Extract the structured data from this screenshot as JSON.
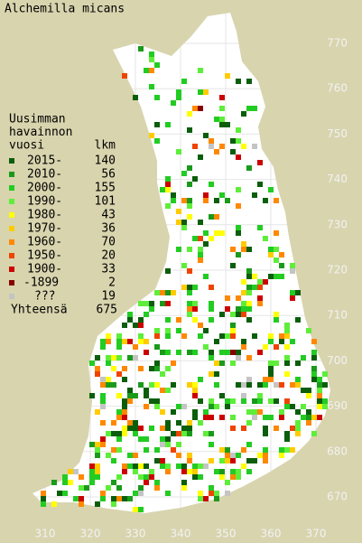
{
  "title": "Alchemilla micans",
  "legend": {
    "heading": [
      "Uusimman",
      "havainnon",
      "vuosi"
    ],
    "count_heading": "lkm",
    "rows": [
      {
        "label": "2015-",
        "count": 140,
        "color": "#0b5e0b"
      },
      {
        "label": "2010-",
        "count": 56,
        "color": "#1a9a1a"
      },
      {
        "label": "2000-",
        "count": 155,
        "color": "#22cc22"
      },
      {
        "label": "1990-",
        "count": 101,
        "color": "#5eee3a"
      },
      {
        "label": "1980-",
        "count": 43,
        "color": "#ffff00"
      },
      {
        "label": "1970-",
        "count": 36,
        "color": "#ffcc00"
      },
      {
        "label": "1960-",
        "count": 70,
        "color": "#ff8800"
      },
      {
        "label": "1950-",
        "count": 20,
        "color": "#ee4400"
      },
      {
        "label": "1900-",
        "count": 33,
        "color": "#cc0000"
      },
      {
        "label": "-1899",
        "count": 2,
        "color": "#880000"
      },
      {
        "label": "???",
        "count": 19,
        "color": "#c4c4c4"
      }
    ],
    "total": {
      "label": "Yhteensä",
      "count": 675
    }
  },
  "map": {
    "xticks": [
      310,
      320,
      330,
      340,
      350,
      360,
      370
    ],
    "yticks": [
      670,
      680,
      690,
      700,
      710,
      720,
      730,
      740,
      750,
      760,
      770
    ]
  }
}
